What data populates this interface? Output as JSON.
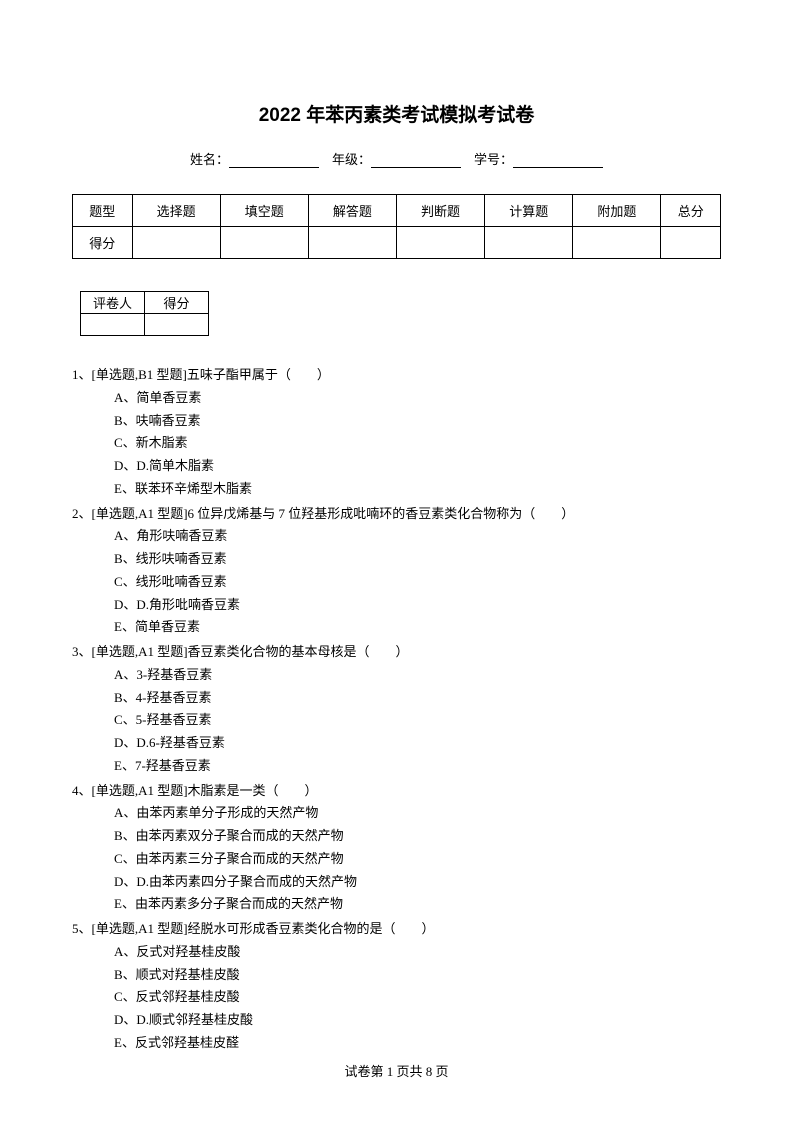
{
  "title": "2022 年苯丙素类考试模拟考试卷",
  "info": {
    "name_label": "姓名：",
    "grade_label": "年级：",
    "id_label": "学号："
  },
  "score_table": {
    "headers": [
      "题型",
      "选择题",
      "填空题",
      "解答题",
      "判断题",
      "计算题",
      "附加题",
      "总分"
    ],
    "row_label": "得分"
  },
  "grader_table": {
    "col1": "评卷人",
    "col2": "得分"
  },
  "questions": [
    {
      "num": "1、",
      "stem": "[单选题,B1 型题]五味子酯甲属于（　　）",
      "options": [
        "A、简单香豆素",
        "B、呋喃香豆素",
        "C、新木脂素",
        "D、D.简单木脂素",
        "E、联苯环辛烯型木脂素"
      ]
    },
    {
      "num": "2、",
      "stem": "[单选题,A1 型题]6 位异戊烯基与 7 位羟基形成吡喃环的香豆素类化合物称为（　　）",
      "options": [
        "A、角形呋喃香豆素",
        "B、线形呋喃香豆素",
        "C、线形吡喃香豆素",
        "D、D.角形吡喃香豆素",
        "E、简单香豆素"
      ]
    },
    {
      "num": "3、",
      "stem": "[单选题,A1 型题]香豆素类化合物的基本母核是（　　）",
      "options": [
        "A、3-羟基香豆素",
        "B、4-羟基香豆素",
        "C、5-羟基香豆素",
        "D、D.6-羟基香豆素",
        "E、7-羟基香豆素"
      ]
    },
    {
      "num": "4、",
      "stem": "[单选题,A1 型题]木脂素是一类（　　）",
      "options": [
        "A、由苯丙素单分子形成的天然产物",
        "B、由苯丙素双分子聚合而成的天然产物",
        "C、由苯丙素三分子聚合而成的天然产物",
        "D、D.由苯丙素四分子聚合而成的天然产物",
        "E、由苯丙素多分子聚合而成的天然产物"
      ]
    },
    {
      "num": "5、",
      "stem": "[单选题,A1 型题]经脱水可形成香豆素类化合物的是（　　）",
      "options": [
        "A、反式对羟基桂皮酸",
        "B、顺式对羟基桂皮酸",
        "C、反式邻羟基桂皮酸",
        "D、D.顺式邻羟基桂皮酸",
        "E、反式邻羟基桂皮醛"
      ]
    }
  ],
  "footer": {
    "text_prefix": "试卷第 ",
    "current_page": "1",
    "text_middle": " 页共 ",
    "total_pages": "8",
    "text_suffix": " 页"
  }
}
